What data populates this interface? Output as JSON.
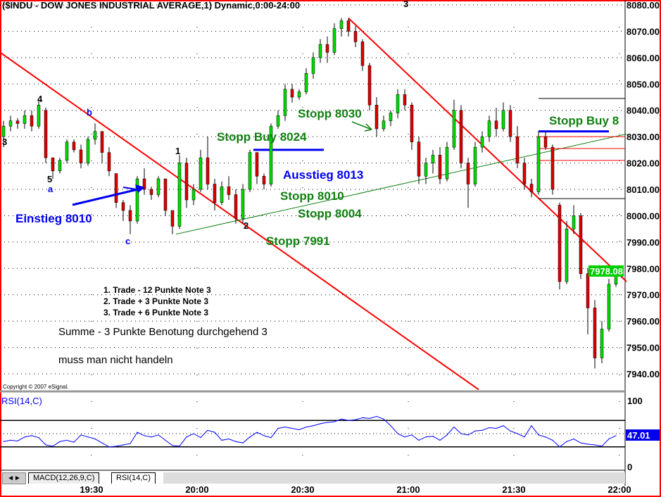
{
  "title": "($INDU - DOW JONES INDUSTRIAL AVERAGE,1) Dynamic,0:00-24:00",
  "copyright": "Copyright © 2007 eSignal.",
  "colors": {
    "border": "#ff0000",
    "up": "#00dd00",
    "down": "#dd0000",
    "annotation_green": "#108010",
    "annotation_blue": "#0000ee",
    "rsi": "#0000ff"
  },
  "chart_data": [
    {
      "type": "candlestick",
      "title": "($INDU - DOW JONES INDUSTRIAL AVERAGE,1) Dynamic,0:00-24:00",
      "ylim": [
        7935,
        8082
      ],
      "y_ticks": [
        "8080.00",
        "8070.00",
        "8060.00",
        "8050.00",
        "8040.00",
        "8030.00",
        "8020.00",
        "8010.00",
        "8000.00",
        "7990.00",
        "7980.00",
        "7970.00",
        "7960.00",
        "7950.00",
        "7940.00"
      ],
      "x_ticks": [
        "19:30",
        "20:00",
        "20:30",
        "21:00",
        "21:30",
        "22:00"
      ],
      "grid": true,
      "last_price": "7978.08",
      "candles_ohlc": [
        [
          "19:05",
          8030,
          8036,
          8026,
          8034
        ],
        [
          "19:07",
          8034,
          8038,
          8032,
          8036
        ],
        [
          "19:09",
          8036,
          8037,
          8033,
          8035
        ],
        [
          "19:11",
          8035,
          8040,
          8033,
          8038
        ],
        [
          "19:13",
          8038,
          8040,
          8032,
          8034
        ],
        [
          "19:15",
          8034,
          8044,
          8033,
          8042
        ],
        [
          "19:17",
          8040,
          8041,
          8020,
          8022
        ],
        [
          "19:19",
          8022,
          8022,
          8014,
          8017
        ],
        [
          "19:21",
          8017,
          8022,
          8016,
          8021
        ],
        [
          "19:23",
          8021,
          8029,
          8020,
          8028
        ],
        [
          "19:25",
          8028,
          8029,
          8024,
          8025
        ],
        [
          "19:27",
          8025,
          8027,
          8018,
          8020
        ],
        [
          "19:29",
          8020,
          8030,
          8019,
          8029
        ],
        [
          "19:31",
          8029,
          8035,
          8027,
          8032
        ],
        [
          "19:33",
          8032,
          8032,
          8020,
          8024
        ],
        [
          "19:35",
          8024,
          8026,
          8015,
          8017
        ],
        [
          "19:37",
          8016,
          8016,
          8003,
          8005
        ],
        [
          "19:39",
          8005,
          8006,
          7998,
          8002
        ],
        [
          "19:41",
          8002,
          8004,
          7993,
          7998
        ],
        [
          "19:43",
          7998,
          8015,
          7997,
          8014
        ],
        [
          "19:45",
          8014,
          8018,
          8008,
          8010
        ],
        [
          "19:47",
          8010,
          8011,
          8006,
          8008
        ],
        [
          "19:49",
          8008,
          8015,
          8007,
          8014
        ],
        [
          "19:51",
          8014,
          8014,
          8000,
          8002
        ],
        [
          "19:53",
          8002,
          8002,
          7993,
          7996
        ],
        [
          "19:55",
          7996,
          8023,
          7995,
          8020
        ],
        [
          "19:57",
          8020,
          8022,
          8003,
          8006
        ],
        [
          "19:59",
          8006,
          8012,
          8004,
          8010
        ],
        [
          "20:01",
          8010,
          8025,
          8009,
          8022
        ],
        [
          "20:03",
          8022,
          8030,
          8010,
          8012
        ],
        [
          "20:05",
          8012,
          8014,
          8002,
          8005
        ],
        [
          "20:07",
          8005,
          8013,
          8004,
          8011
        ],
        [
          "20:09",
          8011,
          8015,
          8006,
          8008
        ],
        [
          "20:11",
          8008,
          8010,
          7997,
          7999
        ],
        [
          "20:13",
          7999,
          8012,
          7997,
          8010
        ],
        [
          "20:15",
          8010,
          8025,
          8009,
          8024
        ],
        [
          "20:17",
          8024,
          8024,
          8012,
          8015
        ],
        [
          "20:19",
          8015,
          8016,
          8010,
          8012
        ],
        [
          "20:21",
          8012,
          8035,
          8011,
          8034
        ],
        [
          "20:23",
          8034,
          8040,
          8033,
          8038
        ],
        [
          "20:25",
          8038,
          8050,
          8036,
          8048
        ],
        [
          "20:27",
          8048,
          8050,
          8043,
          8045
        ],
        [
          "20:29",
          8045,
          8048,
          8044,
          8047
        ],
        [
          "20:31",
          8047,
          8056,
          8046,
          8054
        ],
        [
          "20:33",
          8054,
          8062,
          8052,
          8060
        ],
        [
          "20:35",
          8060,
          8067,
          8058,
          8065
        ],
        [
          "20:37",
          8065,
          8068,
          8058,
          8062
        ],
        [
          "20:39",
          8062,
          8073,
          8061,
          8071
        ],
        [
          "20:41",
          8071,
          8075,
          8068,
          8074
        ],
        [
          "20:43",
          8074,
          8075,
          8068,
          8070
        ],
        [
          "20:45",
          8070,
          8072,
          8064,
          8066
        ],
        [
          "20:47",
          8066,
          8067,
          8055,
          8057
        ],
        [
          "20:49",
          8057,
          8058,
          8040,
          8042
        ],
        [
          "20:51",
          8042,
          8045,
          8030,
          8033
        ],
        [
          "20:53",
          8033,
          8038,
          8032,
          8036
        ],
        [
          "20:55",
          8036,
          8040,
          8034,
          8039
        ],
        [
          "20:57",
          8039,
          8048,
          8037,
          8046
        ],
        [
          "20:59",
          8046,
          8048,
          8040,
          8042
        ],
        [
          "21:01",
          8042,
          8043,
          8025,
          8028
        ],
        [
          "21:03",
          8028,
          8030,
          8012,
          8015
        ],
        [
          "21:05",
          8015,
          8022,
          8012,
          8020
        ],
        [
          "21:07",
          8020,
          8025,
          8016,
          8023
        ],
        [
          "21:09",
          8023,
          8026,
          8012,
          8014
        ],
        [
          "21:11",
          8014,
          8028,
          8013,
          8026
        ],
        [
          "21:13",
          8026,
          8044,
          8025,
          8040
        ],
        [
          "21:15",
          8040,
          8042,
          8018,
          8020
        ],
        [
          "21:17",
          8020,
          8022,
          8003,
          8012
        ],
        [
          "21:19",
          8012,
          8028,
          8011,
          8026
        ],
        [
          "21:21",
          8026,
          8032,
          8024,
          8030
        ],
        [
          "21:23",
          8030,
          8038,
          8028,
          8036
        ],
        [
          "21:25",
          8036,
          8041,
          8030,
          8033
        ],
        [
          "21:27",
          8033,
          8043,
          8032,
          8040
        ],
        [
          "21:29",
          8040,
          8042,
          8028,
          8030
        ],
        [
          "21:31",
          8030,
          8034,
          8018,
          8020
        ],
        [
          "21:33",
          8020,
          8022,
          8010,
          8012
        ],
        [
          "21:35",
          8012,
          8014,
          8007,
          8009
        ],
        [
          "21:37",
          8009,
          8032,
          8008,
          8030
        ],
        [
          "21:39",
          8030,
          8032,
          8025,
          8026
        ],
        [
          "21:41",
          8026,
          8027,
          8008,
          8010
        ],
        [
          "21:43",
          8004,
          8005,
          7972,
          7975
        ],
        [
          "21:45",
          7975,
          7998,
          7974,
          7995
        ],
        [
          "21:47",
          7995,
          8004,
          7993,
          8000
        ],
        [
          "21:49",
          8000,
          8001,
          7976,
          7978
        ],
        [
          "21:51",
          7978,
          7980,
          7955,
          7965
        ],
        [
          "21:53",
          7965,
          7968,
          7942,
          7946
        ],
        [
          "21:55",
          7946,
          7960,
          7944,
          7957
        ],
        [
          "21:57",
          7957,
          7976,
          7956,
          7974
        ],
        [
          "21:59",
          7974,
          7980,
          7973,
          7978
        ]
      ],
      "trendlines": [
        {
          "color": "#ff0000",
          "from": [
            "19:04",
            8062
          ],
          "to": [
            "21:20",
            7934
          ]
        },
        {
          "color": "#ff0000",
          "from": [
            "20:43",
            8075
          ],
          "to": [
            "22:02",
            7975
          ]
        },
        {
          "color": "#108010",
          "from": [
            "19:54",
            7993
          ],
          "to": [
            "22:02",
            8031
          ]
        }
      ],
      "level_lines": [
        {
          "color": "#0000ee",
          "price": 8025,
          "from": "20:16",
          "to": "20:36"
        },
        {
          "color": "#0000ee",
          "price": 8032,
          "from": "21:37",
          "to": "21:57"
        },
        {
          "color": "#000000",
          "price": 8044.5,
          "from": "21:37",
          "to": "22:02"
        },
        {
          "color": "#000000",
          "price": 8006.5,
          "from": "21:37",
          "to": "22:02"
        },
        {
          "color": "#ff0000",
          "price": 8030,
          "from": "21:37",
          "to": "22:02"
        },
        {
          "color": "#ff0000",
          "price": 8025.5,
          "from": "21:37",
          "to": "22:02"
        },
        {
          "color": "#ff0000",
          "price": 8021,
          "from": "21:37",
          "to": "22:02"
        }
      ],
      "wave_labels": [
        {
          "text": "3",
          "color": "#000"
        },
        {
          "text": "4",
          "color": "#000"
        },
        {
          "text": "5",
          "color": "#000"
        },
        {
          "text": "a",
          "color": "#0000ee"
        },
        {
          "text": "b",
          "color": "#0000ee"
        },
        {
          "text": "c",
          "color": "#0000ee"
        },
        {
          "text": "1",
          "color": "#000"
        },
        {
          "text": "2",
          "color": "#000"
        },
        {
          "text": "3",
          "color": "#000"
        }
      ],
      "annotations": {
        "einstieg": "Einstieg 8010",
        "stopp_buy_8024": "Stopp Buy 8024",
        "ausstieg": "Ausstieg 8013",
        "stopp_8010": "Stopp 8010",
        "stopp_8004": "Stopp 8004",
        "stopp_7991": "Stopp 7991",
        "stopp_8030": "Stopp 8030",
        "stopp_buy_right": "Stopp Buy 8"
      },
      "notes": {
        "trade1": "1. Trade - 12 Punkte Note 3",
        "trade2": "2. Trade +  3 Punkte Note 3",
        "trade3": "3. Trade +  6 Punkte Note 3",
        "summe": "Summe - 3 Punkte Benotung durchgehend 3",
        "fazit": "muss man nicht handeln"
      }
    },
    {
      "type": "line",
      "title": "RSI(14,C)",
      "ylim": [
        0,
        100
      ],
      "y_ticks": [
        "100",
        "0"
      ],
      "levels": [
        30,
        50,
        70
      ],
      "last_value": "47.01",
      "values": [
        38,
        40,
        39,
        45,
        47,
        44,
        33,
        31,
        38,
        40,
        37,
        48,
        45,
        42,
        36,
        30,
        31,
        33,
        35,
        52,
        47,
        45,
        48,
        40,
        32,
        31,
        45,
        50,
        44,
        55,
        52,
        40,
        42,
        38,
        36,
        45,
        52,
        47,
        44,
        58,
        60,
        58,
        56,
        60,
        62,
        65,
        67,
        68,
        72,
        70,
        71,
        74,
        73,
        76,
        72,
        62,
        50,
        45,
        48,
        40,
        45,
        46,
        40,
        48,
        60,
        50,
        48,
        54,
        55,
        59,
        58,
        62,
        54,
        50,
        45,
        62,
        48,
        45,
        40,
        30,
        38,
        42,
        36,
        34,
        33,
        31,
        42,
        47
      ]
    }
  ],
  "tabs": [
    {
      "label": "MACD(12,26,9,C)"
    },
    {
      "label": "RSI(14,C)"
    }
  ]
}
